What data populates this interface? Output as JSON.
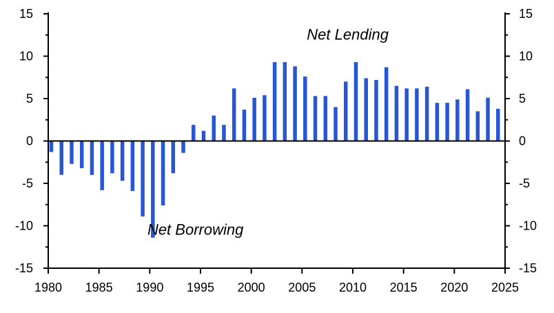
{
  "chart_data": {
    "type": "bar",
    "title": "",
    "xlabel": "",
    "ylabel": "",
    "grid": false,
    "legend": "none",
    "bar_color": "#2957d1",
    "xlim": [
      1980,
      2025
    ],
    "ylim": [
      -15,
      15
    ],
    "x_ticks": [
      1980,
      1985,
      1990,
      1995,
      2000,
      2005,
      2010,
      2015,
      2020,
      2025
    ],
    "y_ticks": [
      15,
      10,
      5,
      0,
      -5,
      -10,
      -15
    ],
    "annotations": [
      {
        "text": "Net Lending",
        "x": 2009.5,
        "y": 12.6
      },
      {
        "text": "Net Borrowing",
        "x": 1994.5,
        "y": -10.4
      }
    ],
    "series": [
      {
        "x": [
          1980,
          1981,
          1982,
          1983,
          1984,
          1985,
          1986,
          1987,
          1988,
          1989,
          1990,
          1991,
          1992,
          1993,
          1994,
          1995,
          1996,
          1997,
          1998,
          1999,
          2000,
          2001,
          2002,
          2003,
          2004,
          2005,
          2006,
          2007,
          2008,
          2009,
          2010,
          2011,
          2012,
          2013,
          2014,
          2015,
          2016,
          2017,
          2018,
          2019,
          2020,
          2021,
          2022,
          2023,
          2024
        ],
        "values": [
          -1.3,
          -4.0,
          -2.7,
          -3.2,
          -4.0,
          -5.8,
          -3.8,
          -4.7,
          -5.9,
          -8.9,
          -11.4,
          -7.6,
          -3.8,
          -1.4,
          1.9,
          1.2,
          3.0,
          1.9,
          6.2,
          3.7,
          5.1,
          5.4,
          9.3,
          9.3,
          8.8,
          7.6,
          5.3,
          5.3,
          4.0,
          7.0,
          9.3,
          7.4,
          7.2,
          8.7,
          6.5,
          6.2,
          6.2,
          6.4,
          4.5,
          4.5,
          4.9,
          6.1,
          3.5,
          5.1,
          3.8
        ]
      }
    ]
  }
}
